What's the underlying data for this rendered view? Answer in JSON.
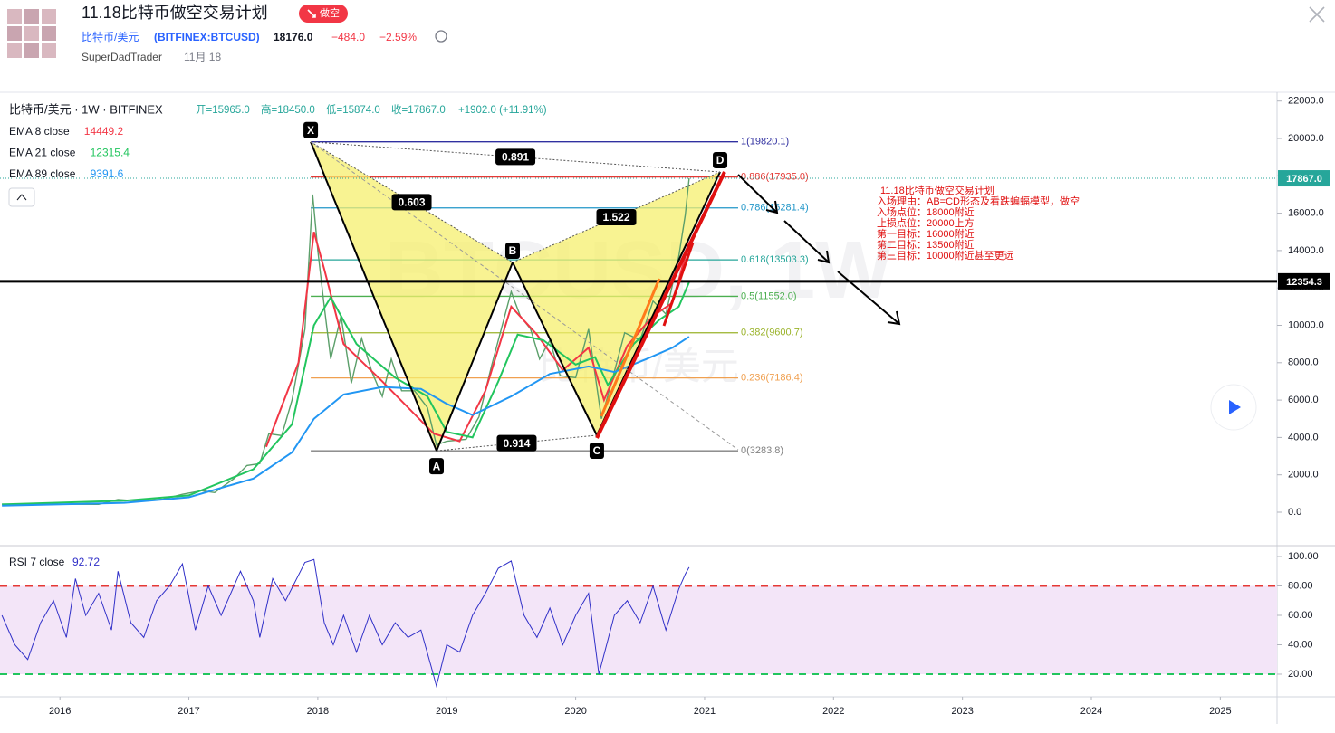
{
  "header": {
    "title": "11.18比特币做空交易计划",
    "badge": "做空",
    "symbol": "比特币/美元",
    "ticker": "(BITFINEX:BTCUSD)",
    "price": "18176.0",
    "change": "−484.0",
    "change_pct": "−2.59%",
    "author": "SuperDadTrader",
    "date": "11月 18"
  },
  "chart_data": [
    {
      "type": "line",
      "legend_title": "比特币/美元 · 1W · BITFINEX",
      "ohlc": [
        "开=15965.0",
        "高=18450.0",
        "低=15874.0",
        "收=17867.0",
        "+1902.0 (+11.91%)"
      ],
      "watermark": [
        "BTCUSD, 1W",
        "比特币/美元"
      ],
      "xlim": [
        2015.535,
        2025.44
      ],
      "xticks": [
        2016,
        2017,
        2018,
        2019,
        2020,
        2021,
        2022,
        2023,
        2024,
        2025
      ],
      "ylim": [
        -1792,
        22421
      ],
      "yticks": [
        {
          "value": 22000,
          "label": "22000.0"
        },
        {
          "value": 20000,
          "label": "20000.0"
        },
        {
          "value": 18000,
          "label": "18000.0"
        },
        {
          "value": 16000,
          "label": "16000.0"
        },
        {
          "value": 14000,
          "label": "14000.0"
        },
        {
          "value": 12000,
          "label": "12000.0"
        },
        {
          "value": 10000,
          "label": "10000.0"
        },
        {
          "value": 8000,
          "label": "8000.0"
        },
        {
          "value": 6000,
          "label": "6000.0"
        },
        {
          "value": 4000,
          "label": "4000.0"
        },
        {
          "value": 2000,
          "label": "2000.0"
        },
        {
          "value": 0,
          "label": "0.0"
        }
      ],
      "series": [
        {
          "name": "收",
          "color": "#5b9f6a",
          "show_legend": false,
          "x": [
            2015.55,
            2015.8,
            2016.0,
            2016.3,
            2016.45,
            2016.6,
            2016.8,
            2016.95,
            2017.1,
            2017.2,
            2017.35,
            2017.45,
            2017.55,
            2017.62,
            2017.72,
            2017.8,
            2017.9,
            2017.96,
            2018.0,
            2018.05,
            2018.1,
            2018.18,
            2018.26,
            2018.34,
            2018.42,
            2018.5,
            2018.57,
            2018.65,
            2018.75,
            2018.85,
            2018.92,
            2019.0,
            2019.15,
            2019.25,
            2019.35,
            2019.45,
            2019.5,
            2019.57,
            2019.65,
            2019.72,
            2019.8,
            2019.88,
            2020.0,
            2020.1,
            2020.2,
            2020.28,
            2020.38,
            2020.5,
            2020.6,
            2020.7,
            2020.8,
            2020.85,
            2020.88
          ],
          "values": [
            430,
            420,
            430,
            420,
            680,
            600,
            700,
            960,
            1150,
            1050,
            1800,
            2500,
            2600,
            4200,
            4100,
            6000,
            9800,
            17000,
            14000,
            11000,
            8200,
            10500,
            6900,
            9300,
            7500,
            6200,
            8200,
            6500,
            6500,
            5600,
            3600,
            3800,
            3900,
            5100,
            7900,
            10500,
            11800,
            10500,
            9800,
            8200,
            9200,
            7300,
            7200,
            9800,
            5000,
            7000,
            9600,
            9200,
            11300,
            10600,
            13700,
            15900,
            17867
          ]
        },
        {
          "name": "EMA 8 close",
          "color": "#f23645",
          "x": [
            2017.6,
            2017.85,
            2017.97,
            2018.05,
            2018.2,
            2018.5,
            2018.9,
            2019.1,
            2019.3,
            2019.5,
            2019.7,
            2019.9,
            2020.1,
            2020.22,
            2020.4,
            2020.6,
            2020.75,
            2020.88
          ],
          "values": [
            3500,
            8000,
            15000,
            13000,
            9000,
            7000,
            4200,
            3800,
            6500,
            11000,
            9500,
            7600,
            8800,
            6000,
            8900,
            10500,
            11200,
            14449.2
          ]
        },
        {
          "name": "EMA 21 close",
          "color": "#22c55e",
          "x": [
            2015.55,
            2016.5,
            2017.0,
            2017.5,
            2017.8,
            2017.97,
            2018.1,
            2018.3,
            2018.6,
            2018.85,
            2019.0,
            2019.2,
            2019.4,
            2019.55,
            2019.75,
            2020.0,
            2020.15,
            2020.25,
            2020.45,
            2020.65,
            2020.8,
            2020.88
          ],
          "values": [
            420,
            620,
            900,
            2300,
            4700,
            10000,
            11500,
            9000,
            7200,
            6200,
            4300,
            4000,
            7000,
            9500,
            9200,
            7900,
            8300,
            6800,
            9000,
            10300,
            11000,
            12315.4
          ]
        },
        {
          "name": "EMA 89 close",
          "color": "#2196f3",
          "x": [
            2015.55,
            2016.5,
            2017.0,
            2017.5,
            2017.8,
            2017.97,
            2018.2,
            2018.5,
            2018.8,
            2019.0,
            2019.2,
            2019.5,
            2019.8,
            2020.1,
            2020.3,
            2020.55,
            2020.75,
            2020.88
          ],
          "values": [
            350,
            500,
            800,
            1800,
            3200,
            5000,
            6300,
            6700,
            6600,
            5800,
            5200,
            6200,
            7400,
            7800,
            7500,
            8200,
            8800,
            9391.6
          ]
        }
      ],
      "price_markers": [
        {
          "value": 17867,
          "label": "17867.0",
          "color": "#26a69a"
        },
        {
          "value": 12354.3,
          "label": "12354.3",
          "color": "#000000"
        }
      ],
      "pattern": {
        "points": [
          {
            "label": "X",
            "x": 2017.945,
            "y": 19820.1
          },
          {
            "label": "A",
            "x": 2018.921,
            "y": 3283.8
          },
          {
            "label": "B",
            "x": 2019.511,
            "y": 13366
          },
          {
            "label": "C",
            "x": 2020.164,
            "y": 4116
          },
          {
            "label": "D",
            "x": 2021.12,
            "y": 18208
          }
        ],
        "ratios": [
          0.891,
          0.603,
          1.522,
          0.914
        ],
        "fill": "#f5ef6e"
      },
      "fib": [
        {
          "ratio": 1,
          "value": 19820.1,
          "label": "1(19820.1)",
          "color": "#3030a0"
        },
        {
          "ratio": 0.886,
          "value": 17935.0,
          "label": "0.886(17935.0)",
          "color": "#e53935"
        },
        {
          "ratio": 0.786,
          "value": 16281.4,
          "label": "0.786(16281.4)",
          "color": "#2196c8"
        },
        {
          "ratio": 0.618,
          "value": 13503.3,
          "label": "0.618(13503.3)",
          "color": "#26a69a"
        },
        {
          "ratio": 0.5,
          "value": 11552.0,
          "label": "0.5(11552.0)",
          "color": "#4caf50"
        },
        {
          "ratio": 0.382,
          "value": 9600.7,
          "label": "0.382(9600.7)",
          "color": "#9ab32a"
        },
        {
          "ratio": 0.236,
          "value": 7186.4,
          "label": "0.236(7186.4)",
          "color": "#f0a050"
        },
        {
          "ratio": 0,
          "value": 3283.8,
          "label": "0(3283.8)",
          "color": "#808080"
        }
      ],
      "annotation": [
        "11.18比特币做空交易计划",
        "入场理由：AB=CD形态及看跌蝙蝠模型，做空",
        "入场点位：18000附近",
        "止损点位：20000上方",
        "第一目标：16000附近",
        "第二目标：13500附近",
        "第三目标：10000附近甚至更远"
      ]
    },
    {
      "type": "line",
      "xlim": [
        2015.535,
        2025.44
      ],
      "ylim": [
        4.6,
        107.4
      ],
      "yticks": [
        {
          "value": 100,
          "label": "100.00"
        },
        {
          "value": 80,
          "label": "80.00"
        },
        {
          "value": 60,
          "label": "60.00"
        },
        {
          "value": 40,
          "label": "40.00"
        },
        {
          "value": 20,
          "label": "20.00"
        }
      ],
      "bands": [
        {
          "value": 80,
          "color": "#e53935"
        },
        {
          "value": 20,
          "color": "#22c55e"
        }
      ],
      "band_fill": "#f3e5f8",
      "series": [
        {
          "name": "RSI 7 close",
          "color": "#3030c8",
          "x": [
            2015.55,
            2015.65,
            2015.75,
            2015.85,
            2015.95,
            2016.05,
            2016.12,
            2016.2,
            2016.3,
            2016.4,
            2016.45,
            2016.55,
            2016.65,
            2016.75,
            2016.85,
            2016.95,
            2017.05,
            2017.15,
            2017.25,
            2017.4,
            2017.5,
            2017.55,
            2017.65,
            2017.75,
            2017.9,
            2017.97,
            2018.05,
            2018.12,
            2018.2,
            2018.3,
            2018.4,
            2018.5,
            2018.6,
            2018.7,
            2018.8,
            2018.88,
            2018.92,
            2019.0,
            2019.1,
            2019.2,
            2019.3,
            2019.4,
            2019.5,
            2019.6,
            2019.7,
            2019.8,
            2019.9,
            2020.0,
            2020.1,
            2020.18,
            2020.3,
            2020.4,
            2020.5,
            2020.6,
            2020.7,
            2020.8,
            2020.85,
            2020.88
          ],
          "values": [
            60,
            40,
            30,
            55,
            70,
            45,
            85,
            60,
            75,
            50,
            90,
            55,
            45,
            70,
            80,
            95,
            50,
            80,
            60,
            90,
            70,
            45,
            85,
            70,
            96,
            98,
            55,
            40,
            60,
            35,
            60,
            40,
            55,
            45,
            50,
            25,
            12,
            40,
            35,
            60,
            75,
            92,
            97,
            60,
            45,
            65,
            40,
            60,
            75,
            20,
            60,
            70,
            55,
            80,
            50,
            78,
            88,
            92.72
          ]
        }
      ]
    }
  ]
}
